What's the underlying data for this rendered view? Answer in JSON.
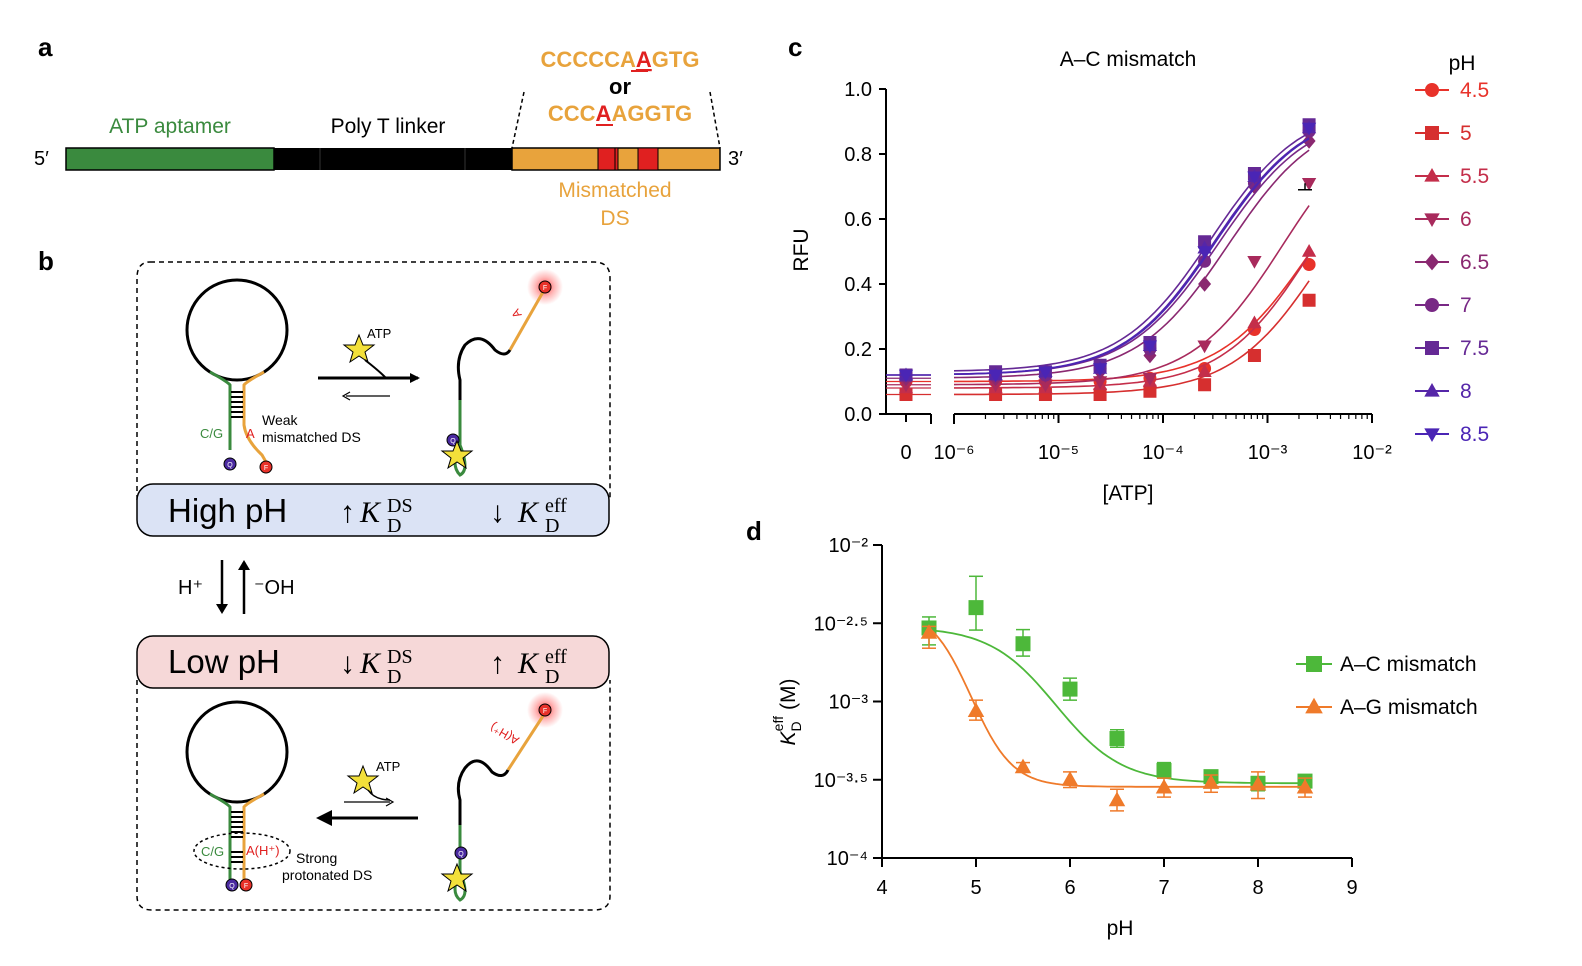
{
  "panel_labels": {
    "a": "a",
    "b": "b",
    "c": "c",
    "d": "d"
  },
  "panel_a": {
    "five_prime": "5′",
    "three_prime": "3′",
    "aptamer": "ATP aptamer",
    "linker": "Poly T linker",
    "seq1_pre": "CCCCCA",
    "seq1_mm": "A",
    "seq1_post": "GTG",
    "or": "or",
    "seq2_pre": "CCC",
    "seq2_mm": "A",
    "seq2_post": "AGGTG",
    "ds_line1": "Mismatched",
    "ds_line2": "DS",
    "colors": {
      "aptamer": "#3a8a3e",
      "linker": "#000000",
      "ds": "#e8a33c",
      "mismatch": "#e02020"
    }
  },
  "panel_b": {
    "atp": "ATP",
    "cg": "C/G",
    "a": "A",
    "weak1": "Weak",
    "weak2": "mismatched DS",
    "q": "Q",
    "f": "F",
    "high_ph": "High pH",
    "low_ph": "Low pH",
    "kd_sym": "K",
    "kd_sub": "D",
    "kd_ds": "DS",
    "kd_eff": "eff",
    "up_arrow": "↑",
    "down_arrow": "↓",
    "h_plus": "H⁺",
    "oh": "⁻OH",
    "ah_plus": "A(H⁺)",
    "strong1": "Strong",
    "strong2": "protonated DS",
    "colors": {
      "high_box": "#dbe3f5",
      "low_box": "#f6d8d8"
    }
  },
  "chart_data": [
    {
      "id": "c",
      "type": "scatter",
      "title": "A–C mismatch",
      "xlabel": "[ATP]",
      "ylabel": "RFU",
      "xscale": "log",
      "x_break": true,
      "x_zero_label": "0",
      "xticks": [
        "10⁻⁶",
        "10⁻⁵",
        "10⁻⁴",
        "10⁻³",
        "10⁻²"
      ],
      "yticks": [
        "0.0",
        "0.2",
        "0.4",
        "0.6",
        "0.8",
        "1.0"
      ],
      "ylim": [
        0,
        1.0
      ],
      "xlim": [
        1e-06,
        0.01
      ],
      "legend_title": "pH",
      "legend_position": "right",
      "x": [
        0,
        2.5e-06,
        7.5e-06,
        2.5e-05,
        7.5e-05,
        0.00025,
        0.00075,
        0.0025
      ],
      "series": [
        {
          "name": "4.5",
          "marker": "circle",
          "color": "#e8322a",
          "values": [
            0.1,
            0.1,
            0.1,
            0.1,
            0.11,
            0.14,
            0.26,
            0.46
          ]
        },
        {
          "name": "5",
          "marker": "square",
          "color": "#d62f2f",
          "values": [
            0.06,
            0.06,
            0.06,
            0.06,
            0.07,
            0.09,
            0.18,
            0.35
          ]
        },
        {
          "name": "5.5",
          "marker": "triangle-up",
          "color": "#c42e4a",
          "values": [
            0.08,
            0.08,
            0.08,
            0.09,
            0.1,
            0.13,
            0.28,
            0.5
          ]
        },
        {
          "name": "6",
          "marker": "triangle-down",
          "color": "#a82a5c",
          "values": [
            0.09,
            0.09,
            0.09,
            0.1,
            0.11,
            0.21,
            0.47,
            0.71
          ]
        },
        {
          "name": "6.5",
          "marker": "diamond",
          "color": "#8a2870",
          "values": [
            0.11,
            0.11,
            0.12,
            0.13,
            0.18,
            0.4,
            0.7,
            0.84
          ]
        },
        {
          "name": "7",
          "marker": "circle",
          "color": "#782885",
          "values": [
            0.12,
            0.12,
            0.12,
            0.14,
            0.2,
            0.47,
            0.71,
            0.87
          ]
        },
        {
          "name": "7.5",
          "marker": "square",
          "color": "#652995",
          "values": [
            0.12,
            0.13,
            0.13,
            0.15,
            0.22,
            0.53,
            0.74,
            0.89
          ]
        },
        {
          "name": "8",
          "marker": "triangle-up",
          "color": "#5526a8",
          "values": [
            0.12,
            0.12,
            0.13,
            0.14,
            0.21,
            0.51,
            0.73,
            0.88
          ]
        },
        {
          "name": "8.5",
          "marker": "triangle-down",
          "color": "#4a25b5",
          "values": [
            0.12,
            0.12,
            0.13,
            0.14,
            0.21,
            0.5,
            0.73,
            0.88
          ]
        }
      ]
    },
    {
      "id": "d",
      "type": "scatter",
      "title": "",
      "xlabel": "pH",
      "ylabel_main": "K",
      "ylabel_sub": "D",
      "ylabel_sup": "eff",
      "ylabel_unit": "(M)",
      "yscale": "log",
      "ylim": [
        0.0001,
        0.01
      ],
      "xlim": [
        4,
        9
      ],
      "xticks": [
        "4",
        "5",
        "6",
        "7",
        "8",
        "9"
      ],
      "yticks": [
        "10⁻⁴",
        "10⁻³·⁵",
        "10⁻³",
        "10⁻²·⁵",
        "10⁻²"
      ],
      "legend_position": "right",
      "x": [
        4.5,
        5,
        5.5,
        6,
        6.5,
        7,
        7.5,
        8,
        8.5
      ],
      "series": [
        {
          "name": "A–C mismatch",
          "marker": "square",
          "color": "#4db83a",
          "values": [
            0.00295,
            0.00398,
            0.00234,
            0.0012,
            0.00058,
            0.000363,
            0.000331,
            0.0003,
            0.00031
          ],
          "err_low": [
            0.0023,
            0.00286,
            0.00195,
            0.00102,
            0.00051,
            0.000324,
            0.000302,
            0.000269,
            0.000281
          ],
          "err_high": [
            0.00347,
            0.00631,
            0.00288,
            0.00141,
            0.00066,
            0.000407,
            0.000347,
            0.000331,
            0.000339
          ]
        },
        {
          "name": "A–G mismatch",
          "marker": "triangle-up",
          "color": "#ef7a2a",
          "values": [
            0.00275,
            0.00087,
            0.00038,
            0.000316,
            0.000234,
            0.000282,
            0.000302,
            0.000295,
            0.000282
          ],
          "err_low": [
            0.00219,
            0.00076,
            0.000355,
            0.000282,
            0.0002,
            0.000245,
            0.000263,
            0.00024,
            0.000245
          ],
          "err_high": [
            0.00302,
            0.00102,
            0.000407,
            0.000355,
            0.000275,
            0.000324,
            0.000339,
            0.000355,
            0.000324
          ]
        }
      ]
    }
  ]
}
